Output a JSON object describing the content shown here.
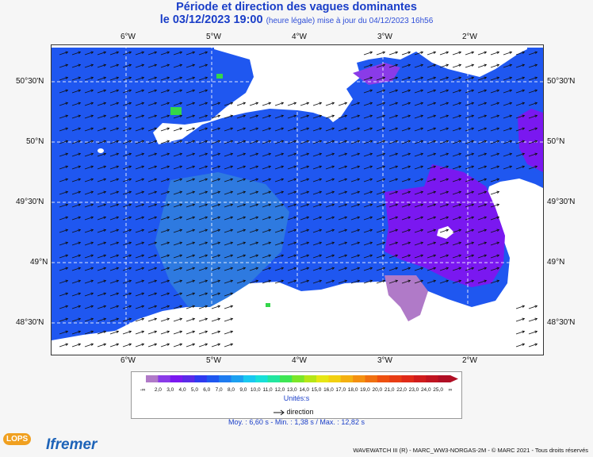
{
  "title": "Période et direction des vagues dominantes",
  "subtitle_date": "le 03/12/2023 19:00",
  "subtitle_note": "(heure légale) mise à jour du 04/12/2023 16h56",
  "axes": {
    "lon_ticks": [
      "6°W",
      "5°W",
      "4°W",
      "3°W",
      "2°W"
    ],
    "lat_ticks": [
      "50°30'N",
      "50°N",
      "49°30'N",
      "49°N",
      "48°30'N"
    ]
  },
  "legend": {
    "values": [
      "-∞",
      "2,0",
      "3,0",
      "4,0",
      "5,0",
      "6,0",
      "7,0",
      "8,0",
      "9,0",
      "10,0",
      "11,0",
      "12,0",
      "13,0",
      "14,0",
      "15,0",
      "16,0",
      "17,0",
      "18,0",
      "19,0",
      "20,0",
      "21,0",
      "22,0",
      "23,0",
      "24,0",
      "25,0",
      "∞"
    ],
    "units": "Unités:s",
    "direction_label": "direction",
    "colors": [
      "#b07ac8",
      "#8a3be8",
      "#7a18f0",
      "#5a2ae8",
      "#2e3af0",
      "#1f57f0",
      "#1e7cf0",
      "#1ca0f0",
      "#19c8f0",
      "#18e0d8",
      "#22e6a0",
      "#3ee654",
      "#7ce628",
      "#b6e616",
      "#e6e614",
      "#f2d010",
      "#f4b010",
      "#f49010",
      "#f07010",
      "#ee5010",
      "#e83c14",
      "#e02a18",
      "#d01c1c",
      "#c01420",
      "#b00e24"
    ]
  },
  "stats": "Moy. : 6,60 s   -   Min. : 1,38 s / Max. : 12,82 s",
  "footer": "WAVEWATCH III (R) - MARC_WW3-NORGAS-2M - © MARC 2021 - Tous droits réservés",
  "logos": {
    "lops": "LOPS",
    "ifremer": "Ifremer"
  },
  "colors": {
    "sea": "#1f57f0",
    "swell": "#2e7ae0",
    "purple": "#8a3be8",
    "grey": "#b07ac8",
    "green": "#34d64a",
    "land": "#ffffff"
  }
}
